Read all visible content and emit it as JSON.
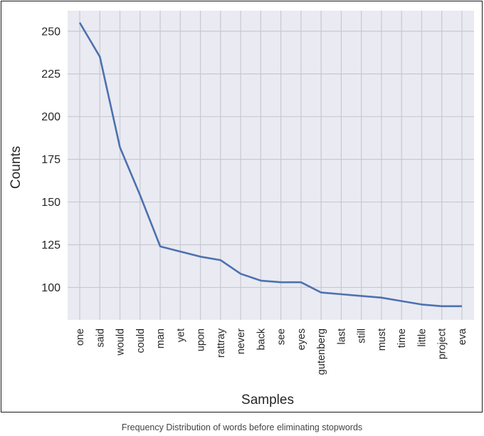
{
  "chart_data": {
    "type": "line",
    "title": "",
    "xlabel": "Samples",
    "ylabel": "Counts",
    "categories": [
      "one",
      "said",
      "would",
      "could",
      "man",
      "yet",
      "upon",
      "rattray",
      "never",
      "back",
      "see",
      "eyes",
      "gutenberg",
      "last",
      "still",
      "must",
      "time",
      "little",
      "project",
      "eva"
    ],
    "values": [
      255,
      235,
      182,
      154,
      124,
      121,
      118,
      116,
      108,
      104,
      103,
      103,
      97,
      96,
      95,
      94,
      92,
      90,
      89,
      89
    ],
    "yticks": [
      100,
      125,
      150,
      175,
      200,
      225,
      250
    ],
    "ylim": [
      81,
      262
    ],
    "grid": true,
    "line_color": "#4c72b0",
    "plot_bg_color": "#eaeaf2",
    "grid_color": "#c8c8d0"
  },
  "caption": "Frequency Distribution of words before eliminating stopwords"
}
